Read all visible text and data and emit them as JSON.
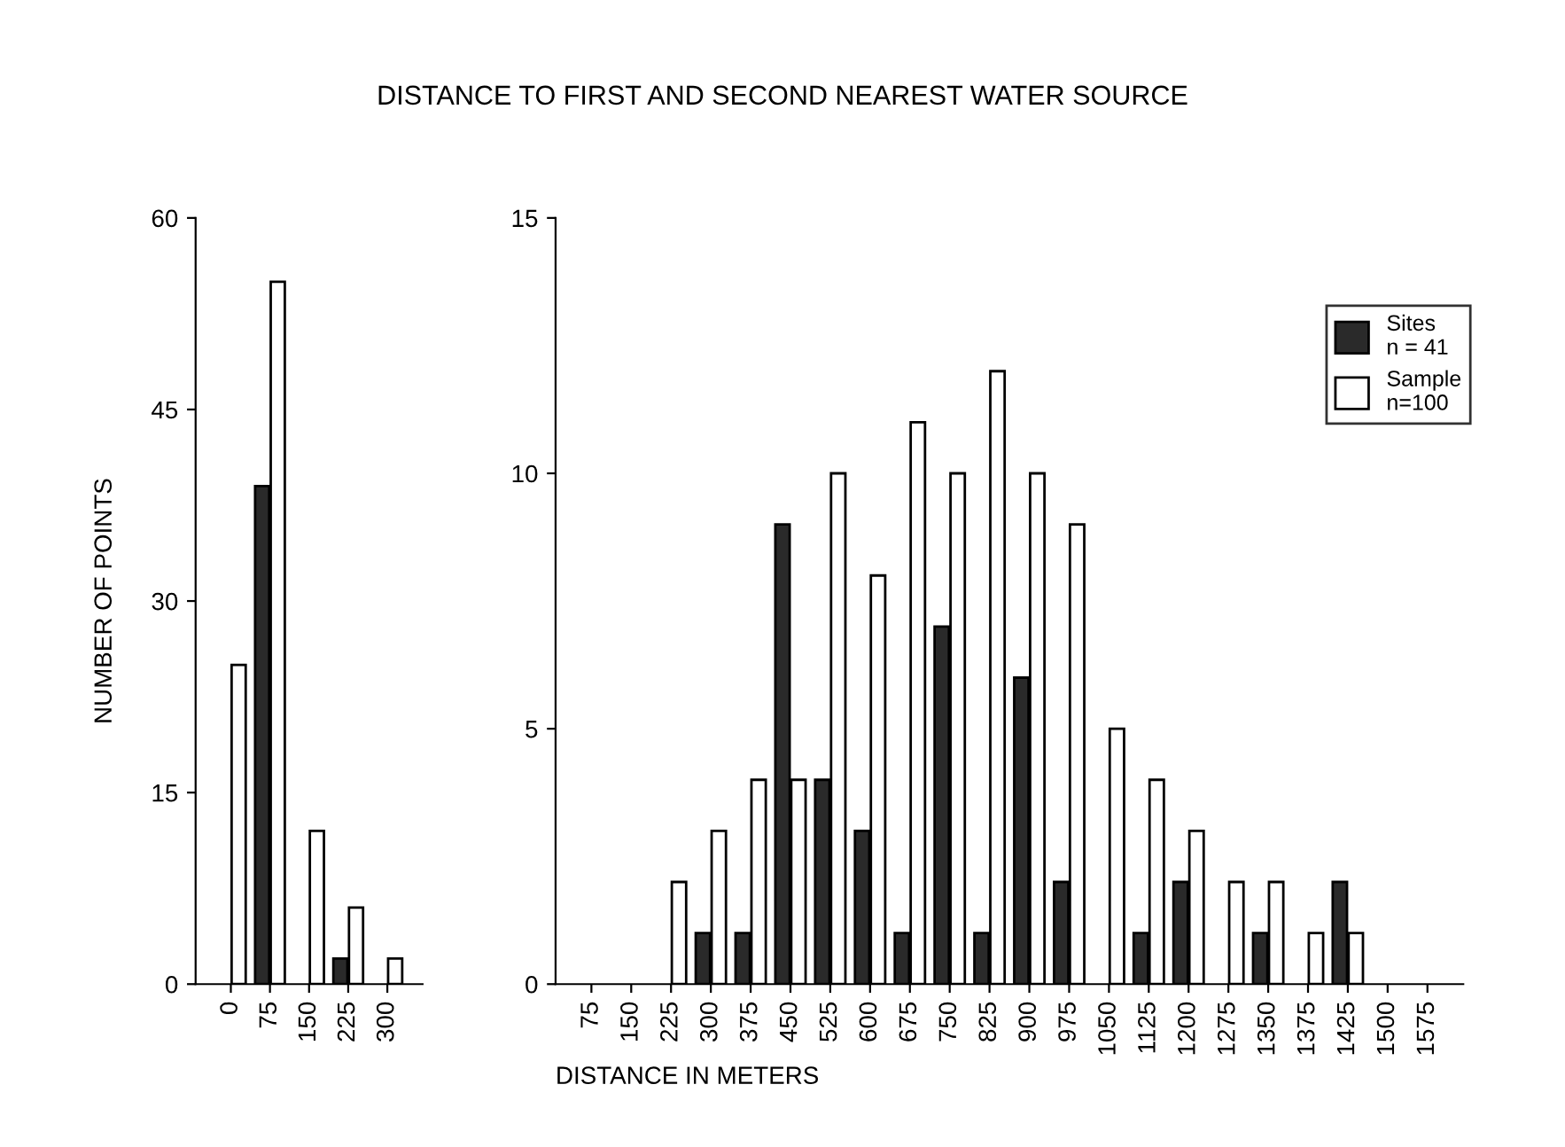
{
  "chart_data": [
    {
      "type": "bar",
      "ylabel": "NUMBER OF POINTS",
      "categories": [
        "0",
        "75",
        "150",
        "225",
        "300"
      ],
      "series": [
        {
          "color": "#2a2a2a",
          "values": [
            0,
            39,
            0,
            2,
            0
          ]
        },
        {
          "color": "#ffffff",
          "values": [
            25,
            55,
            12,
            6,
            2
          ]
        }
      ],
      "ylim": [
        0,
        60
      ],
      "yticks": [
        0,
        15,
        30,
        45,
        60
      ],
      "grid": false,
      "legend": false
    },
    {
      "type": "bar",
      "title": "DISTANCE TO FIRST AND SECOND NEAREST WATER SOURCE",
      "xlabel": "DISTANCE IN METERS",
      "categories": [
        "75",
        "150",
        "225",
        "300",
        "375",
        "450",
        "525",
        "600",
        "675",
        "750",
        "825",
        "900",
        "975",
        "1050",
        "1125",
        "1200",
        "1275",
        "1350",
        "1375",
        "1425",
        "1500",
        "1575"
      ],
      "series": [
        {
          "name": "Sites\nn = 41",
          "color": "#2a2a2a",
          "values": [
            0,
            0,
            0,
            1,
            1,
            9,
            4,
            3,
            1,
            7,
            1,
            6,
            2,
            0,
            1,
            2,
            0,
            1,
            0,
            2,
            0,
            0
          ]
        },
        {
          "name": "Sample\nn=100",
          "color": "#ffffff",
          "values": [
            0,
            0,
            2,
            3,
            4,
            4,
            10,
            8,
            11,
            10,
            12,
            10,
            9,
            5,
            4,
            3,
            2,
            2,
            1,
            1,
            0,
            0
          ]
        }
      ],
      "ylim": [
        0,
        15
      ],
      "yticks": [
        0,
        5,
        10,
        15
      ],
      "grid": false,
      "legend": "top right"
    }
  ]
}
